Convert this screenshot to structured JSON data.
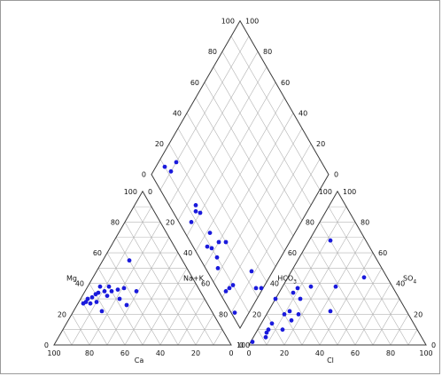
{
  "chart_data": {
    "type": "scatter",
    "subtype": "piper-diagram",
    "title": "",
    "point_color": "#1a1adc",
    "grid": true,
    "cation_triangle": {
      "axes": {
        "mg": "Mg",
        "na_k": "Na+K",
        "ca": "Ca"
      },
      "ticks": {
        "ca": [
          "100",
          "80",
          "60",
          "40",
          "20",
          "0"
        ],
        "mg": [
          "0",
          "20",
          "40",
          "60",
          "80",
          "100"
        ],
        "na_k": [
          "0",
          "20",
          "40",
          "60",
          "80",
          "100"
        ]
      },
      "points": [
        {
          "ca": 30,
          "mg": 55,
          "na_k": 15
        },
        {
          "ca": 36,
          "mg": 35,
          "na_k": 29
        },
        {
          "ca": 42,
          "mg": 37,
          "na_k": 21
        },
        {
          "ca": 46,
          "mg": 36,
          "na_k": 18
        },
        {
          "ca": 50,
          "mg": 35,
          "na_k": 15
        },
        {
          "ca": 50,
          "mg": 38,
          "na_k": 12
        },
        {
          "ca": 54,
          "mg": 35,
          "na_k": 11
        },
        {
          "ca": 55,
          "mg": 38,
          "na_k": 7
        },
        {
          "ca": 58,
          "mg": 34,
          "na_k": 8
        },
        {
          "ca": 54,
          "mg": 32,
          "na_k": 14
        },
        {
          "ca": 60,
          "mg": 33,
          "na_k": 7
        },
        {
          "ca": 63,
          "mg": 31,
          "na_k": 6
        },
        {
          "ca": 66,
          "mg": 30,
          "na_k": 4
        },
        {
          "ca": 68,
          "mg": 28,
          "na_k": 4
        },
        {
          "ca": 70,
          "mg": 27,
          "na_k": 3
        },
        {
          "ca": 66,
          "mg": 27,
          "na_k": 7
        },
        {
          "ca": 62,
          "mg": 28,
          "na_k": 10
        },
        {
          "ca": 62,
          "mg": 22,
          "na_k": 16
        },
        {
          "ca": 48,
          "mg": 30,
          "na_k": 22
        },
        {
          "ca": 46,
          "mg": 26,
          "na_k": 28
        }
      ]
    },
    "anion_triangle": {
      "axes": {
        "hco3": "HCO",
        "hco3_sub": "3",
        "so4": "SO",
        "so4_sub": "4",
        "cl": "Cl"
      },
      "ticks": {
        "cl": [
          "0",
          "20",
          "40",
          "60",
          "80",
          "100"
        ],
        "so4": [
          "0",
          "20",
          "40",
          "60",
          "80",
          "100"
        ],
        "hco3": [
          "100",
          "80",
          "60",
          "40",
          "20",
          "0"
        ]
      },
      "points": [
        {
          "hco3": 97,
          "so4": 2,
          "cl": 1
        },
        {
          "hco3": 88,
          "so4": 5,
          "cl": 7
        },
        {
          "hco3": 86,
          "so4": 8,
          "cl": 6
        },
        {
          "hco3": 84,
          "so4": 10,
          "cl": 6
        },
        {
          "hco3": 80,
          "so4": 14,
          "cl": 6
        },
        {
          "hco3": 76,
          "so4": 10,
          "cl": 14
        },
        {
          "hco3": 70,
          "so4": 20,
          "cl": 10
        },
        {
          "hco3": 68,
          "so4": 16,
          "cl": 16
        },
        {
          "hco3": 66,
          "so4": 22,
          "cl": 12
        },
        {
          "hco3": 62,
          "so4": 20,
          "cl": 18
        },
        {
          "hco3": 58,
          "so4": 34,
          "cl": 8
        },
        {
          "hco3": 54,
          "so4": 37,
          "cl": 9
        },
        {
          "hco3": 56,
          "so4": 30,
          "cl": 14
        },
        {
          "hco3": 46,
          "so4": 38,
          "cl": 16
        },
        {
          "hco3": 43,
          "so4": 22,
          "cl": 35
        },
        {
          "hco3": 32,
          "so4": 38,
          "cl": 30
        },
        {
          "hco3": 20,
          "so4": 68,
          "cl": 12
        },
        {
          "hco3": 70,
          "so4": 30,
          "cl": 0
        },
        {
          "hco3": 13,
          "so4": 44,
          "cl": 43
        }
      ]
    },
    "diamond": {
      "ticks_left": [
        "0",
        "20",
        "40",
        "60",
        "80",
        "100"
      ],
      "ticks_right": [
        "0",
        "20",
        "40",
        "60",
        "80",
        "100"
      ],
      "points": [
        {
          "so4_cl": 95,
          "ca_mg": 10
        },
        {
          "so4_cl": 90,
          "ca_mg": 18
        },
        {
          "so4_cl": 90,
          "ca_mg": 12
        },
        {
          "so4_cl": 65,
          "ca_mg": 15
        },
        {
          "so4_cl": 63,
          "ca_mg": 13
        },
        {
          "so4_cl": 60,
          "ca_mg": 15
        },
        {
          "so4_cl": 62,
          "ca_mg": 7
        },
        {
          "so4_cl": 48,
          "ca_mg": 14
        },
        {
          "so4_cl": 45,
          "ca_mg": 8
        },
        {
          "so4_cl": 42,
          "ca_mg": 10
        },
        {
          "so4_cl": 40,
          "ca_mg": 16
        },
        {
          "so4_cl": 36,
          "ca_mg": 20
        },
        {
          "so4_cl": 36,
          "ca_mg": 10
        },
        {
          "so4_cl": 32,
          "ca_mg": 7
        },
        {
          "so4_cl": 20,
          "ca_mg": 4
        },
        {
          "so4_cl": 19,
          "ca_mg": 7
        },
        {
          "so4_cl": 18,
          "ca_mg": 10
        },
        {
          "so4_cl": 12,
          "ca_mg": 25
        },
        {
          "so4_cl": 8,
          "ca_mg": 2
        },
        {
          "so4_cl": 4,
          "ca_mg": 22
        },
        {
          "so4_cl": 1,
          "ca_mg": 25
        }
      ]
    }
  }
}
